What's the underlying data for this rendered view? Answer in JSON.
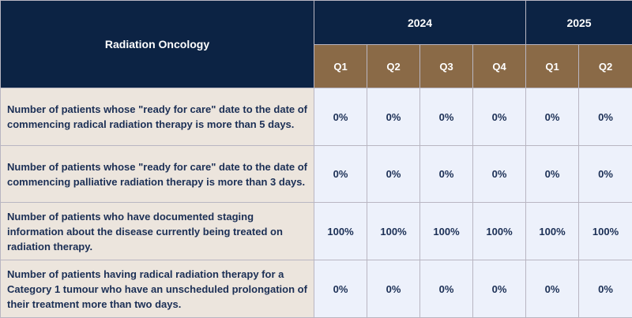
{
  "header": {
    "title": "Radiation Oncology",
    "years": [
      {
        "label": "2024"
      },
      {
        "label": "2025"
      }
    ],
    "quarters": [
      "Q1",
      "Q2",
      "Q3",
      "Q4",
      "Q1",
      "Q2"
    ]
  },
  "rows": [
    {
      "label": "Number of patients whose \"ready for care\" date to the date of commencing radical radiation therapy is more than 5 days.",
      "values": [
        "0%",
        "0%",
        "0%",
        "0%",
        "0%",
        "0%"
      ]
    },
    {
      "label": "Number of patients whose \"ready for care\" date to the date of commencing palliative radiation therapy is more than 3 days.",
      "values": [
        "0%",
        "0%",
        "0%",
        "0%",
        "0%",
        "0%"
      ]
    },
    {
      "label": "Number of patients who have documented staging information about the disease currently being treated on radiation therapy.",
      "values": [
        "100%",
        "100%",
        "100%",
        "100%",
        "100%",
        "100%"
      ]
    },
    {
      "label": "Number of patients having radical radiation therapy for a Category 1 tumour who have an unscheduled prolongation of their treatment more than two days.",
      "values": [
        "0%",
        "0%",
        "0%",
        "0%",
        "0%",
        "0%"
      ]
    }
  ],
  "colors": {
    "header_navy": "#0c2344",
    "quarter_brown": "#8a6a47",
    "label_bg": "#ece5dd",
    "cell_bg": "#edf1fb",
    "text_navy": "#1b2f55"
  }
}
